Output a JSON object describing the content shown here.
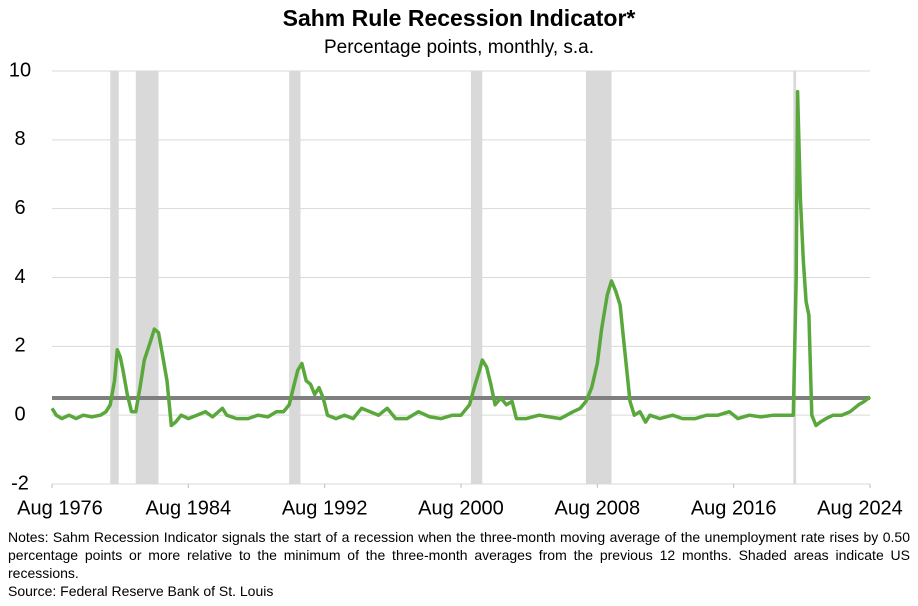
{
  "chart_data": {
    "type": "line",
    "title": "Sahm Rule Recession Indicator*",
    "subtitle": "Percentage points, monthly, s.a.",
    "notes": "Notes: Sahm Recession Indicator signals the start of a recession when the three-month moving average of the unemployment rate rises by 0.50 percentage points or more relative to the minimum of the three-month averages from the previous 12 months. Shaded areas indicate US recessions.",
    "source": "Source: Federal Reserve Bank of St. Louis",
    "color": "#5aa83c",
    "threshold": 0.5,
    "threshold_color": "#7f7f7f",
    "recession_color": "#d9d9d9",
    "grid": true,
    "ylim": [
      -2,
      10
    ],
    "yticks": [
      -2,
      0,
      2,
      4,
      6,
      8,
      10
    ],
    "xlim": [
      "1976-08",
      "2024-08"
    ],
    "xticks": [
      {
        "value": "1976-08",
        "label": "Aug 1976"
      },
      {
        "value": "1984-08",
        "label": "Aug 1984"
      },
      {
        "value": "1992-08",
        "label": "Aug 1992"
      },
      {
        "value": "2000-08",
        "label": "Aug 2000"
      },
      {
        "value": "2008-08",
        "label": "Aug 2008"
      },
      {
        "value": "2016-08",
        "label": "Aug 2016"
      },
      {
        "value": "2024-08",
        "label": "Aug 2024"
      }
    ],
    "recessions": [
      {
        "start": "1980-01",
        "end": "1980-07"
      },
      {
        "start": "1981-07",
        "end": "1982-11"
      },
      {
        "start": "1990-07",
        "end": "1991-03"
      },
      {
        "start": "2001-03",
        "end": "2001-11"
      },
      {
        "start": "2007-12",
        "end": "2009-06"
      },
      {
        "start": "2020-02",
        "end": "2020-04"
      }
    ],
    "x": [
      "1976-08",
      "1976-11",
      "1977-03",
      "1977-08",
      "1978-01",
      "1978-06",
      "1978-12",
      "1979-06",
      "1979-10",
      "1980-01",
      "1980-04",
      "1980-06",
      "1980-08",
      "1980-10",
      "1981-01",
      "1981-04",
      "1981-07",
      "1981-10",
      "1982-01",
      "1982-05",
      "1982-08",
      "1982-11",
      "1983-02",
      "1983-05",
      "1983-08",
      "1983-11",
      "1984-03",
      "1984-08",
      "1985-02",
      "1985-08",
      "1986-01",
      "1986-08",
      "1986-11",
      "1987-06",
      "1988-02",
      "1988-09",
      "1989-04",
      "1989-10",
      "1990-03",
      "1990-07",
      "1990-10",
      "1991-01",
      "1991-04",
      "1991-07",
      "1991-10",
      "1992-01",
      "1992-04",
      "1992-07",
      "1992-10",
      "1993-04",
      "1993-10",
      "1994-04",
      "1994-10",
      "1995-04",
      "1995-10",
      "1996-04",
      "1996-10",
      "1997-06",
      "1998-02",
      "1998-10",
      "1999-06",
      "2000-02",
      "2000-08",
      "2001-02",
      "2001-06",
      "2001-09",
      "2001-11",
      "2002-02",
      "2002-05",
      "2002-08",
      "2002-12",
      "2003-04",
      "2003-08",
      "2003-11",
      "2004-06",
      "2005-03",
      "2005-10",
      "2006-06",
      "2007-03",
      "2007-08",
      "2007-12",
      "2008-04",
      "2008-08",
      "2008-11",
      "2009-03",
      "2009-06",
      "2009-09",
      "2009-12",
      "2010-03",
      "2010-07",
      "2010-10",
      "2011-02",
      "2011-06",
      "2011-09",
      "2012-04",
      "2013-01",
      "2013-08",
      "2014-05",
      "2015-01",
      "2015-09",
      "2016-05",
      "2016-11",
      "2017-07",
      "2018-03",
      "2018-12",
      "2019-08",
      "2020-02",
      "2020-04",
      "2020-05",
      "2020-07",
      "2020-09",
      "2020-11",
      "2021-01",
      "2021-03",
      "2021-06",
      "2021-09",
      "2022-01",
      "2022-06",
      "2022-12",
      "2023-06",
      "2023-12",
      "2024-04",
      "2024-08"
    ],
    "values": [
      0.2,
      0.0,
      -0.1,
      0.0,
      -0.1,
      0.0,
      -0.05,
      0.0,
      0.1,
      0.3,
      1.0,
      1.9,
      1.7,
      1.3,
      0.6,
      0.1,
      0.1,
      0.8,
      1.6,
      2.1,
      2.5,
      2.4,
      1.7,
      1.0,
      -0.3,
      -0.2,
      0.0,
      -0.1,
      0.0,
      0.1,
      -0.05,
      0.2,
      0.0,
      -0.1,
      -0.1,
      0.0,
      -0.05,
      0.1,
      0.1,
      0.3,
      0.8,
      1.3,
      1.5,
      1.0,
      0.9,
      0.6,
      0.8,
      0.5,
      0.0,
      -0.1,
      0.0,
      -0.1,
      0.2,
      0.1,
      0.0,
      0.2,
      -0.1,
      -0.1,
      0.1,
      -0.05,
      -0.1,
      0.0,
      0.0,
      0.3,
      0.9,
      1.3,
      1.6,
      1.4,
      0.9,
      0.3,
      0.5,
      0.3,
      0.4,
      -0.1,
      -0.1,
      0.0,
      -0.05,
      -0.1,
      0.1,
      0.2,
      0.4,
      0.8,
      1.5,
      2.5,
      3.5,
      3.9,
      3.6,
      3.2,
      2.0,
      0.4,
      0.0,
      0.1,
      -0.2,
      0.0,
      -0.1,
      0.0,
      -0.1,
      -0.1,
      0.0,
      0.0,
      0.1,
      -0.1,
      0.0,
      -0.05,
      0.0,
      0.0,
      0.0,
      4.0,
      9.4,
      6.3,
      4.5,
      3.3,
      2.9,
      0.0,
      -0.3,
      -0.2,
      -0.1,
      0.0,
      0.0,
      0.1,
      0.3,
      0.4,
      0.53
    ]
  }
}
